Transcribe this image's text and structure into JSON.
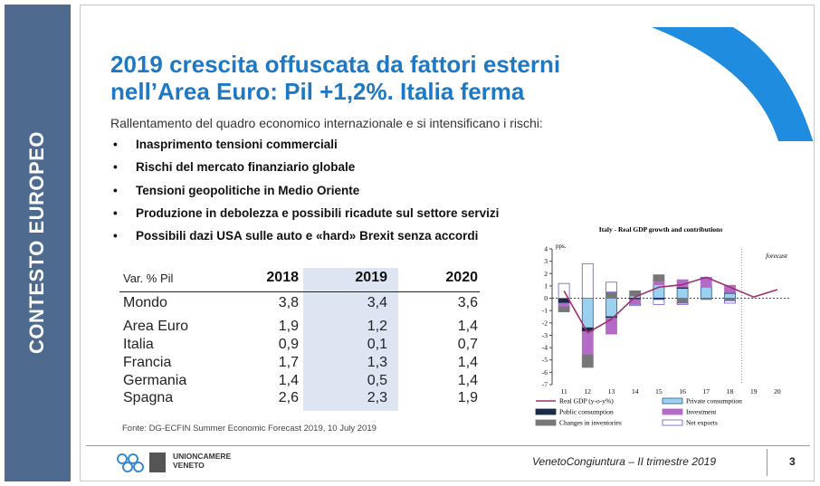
{
  "sidebar": {
    "label": "CONTESTO EUROPEO"
  },
  "header": {
    "title_line1": "2019 crescita offuscata da fattori esterni",
    "title_line2": "nell’Area Euro: Pil +1,2%. Italia ferma"
  },
  "intro": "Rallentamento del quadro economico internazionale e si intensificano i rischi:",
  "bullets": [
    "Inasprimento tensioni commerciali",
    "Rischi del mercato finanziario globale",
    "Tensioni geopolitiche in Medio Oriente",
    "Produzione in debolezza e possibili ricadute sul settore servizi",
    "Possibili dazi USA sulle auto e «hard» Brexit senza accordi"
  ],
  "table": {
    "header": [
      "Var. % Pil",
      "2018",
      "2019",
      "2020"
    ],
    "rows": [
      [
        "Mondo",
        "3,8",
        "3,4",
        "3,6"
      ],
      [
        "Area Euro",
        "1,9",
        "1,2",
        "1,4"
      ],
      [
        "Italia",
        "0,9",
        "0,1",
        "0,7"
      ],
      [
        "Francia",
        "1,7",
        "1,3",
        "1,4"
      ],
      [
        "Germania",
        "1,4",
        "0,5",
        "1,4"
      ],
      [
        "Spagna",
        "2,6",
        "2,3",
        "1,9"
      ]
    ]
  },
  "source": "Fonte: DG-ECFIN Summer Economic Forecast 2019, 10 July 2019",
  "footer": {
    "logo_text_1": "UNIONCAMERE",
    "logo_text_2": "VENETO",
    "caption": "VenetoCongiuntura – II trimestre 2019",
    "page": "3"
  },
  "chart_data": {
    "type": "bar-line",
    "title": "Italy - Real GDP growth and contributions",
    "y_label": "pps.",
    "annotation": "forecast",
    "categories": [
      "11",
      "12",
      "13",
      "14",
      "15",
      "16",
      "17",
      "18",
      "19",
      "20"
    ],
    "ylim": [
      -7,
      4
    ],
    "yticks": [
      4,
      3,
      2,
      1,
      0,
      -1,
      -2,
      -3,
      -4,
      -5,
      -6,
      -7
    ],
    "series": [
      {
        "name": "Private consumption",
        "kind": "bar",
        "color": "#9dd0ee",
        "values": [
          0.0,
          -2.4,
          -1.5,
          0.2,
          1.1,
          0.8,
          0.9,
          0.4,
          null,
          null
        ]
      },
      {
        "name": "Public consumption",
        "kind": "bar",
        "color": "#1a2a48",
        "values": [
          -0.4,
          -0.3,
          -0.1,
          -0.1,
          -0.1,
          0.1,
          0.0,
          0.05,
          null,
          null
        ]
      },
      {
        "name": "Investment",
        "kind": "bar",
        "color": "#b36bc7",
        "values": [
          -0.3,
          -1.9,
          -1.3,
          -0.4,
          0.3,
          0.6,
          0.7,
          0.6,
          null,
          null
        ]
      },
      {
        "name": "Changes in inventories",
        "kind": "bar",
        "color": "#777777",
        "values": [
          -0.4,
          -1.0,
          0.5,
          0.4,
          0.5,
          -0.4,
          -0.1,
          -0.2,
          null,
          null
        ]
      },
      {
        "name": "Net exports",
        "kind": "bar",
        "color": "#ffffff",
        "values": [
          1.2,
          2.8,
          0.8,
          -0.1,
          -0.4,
          -0.1,
          0.1,
          -0.2,
          null,
          null
        ]
      },
      {
        "name": "Real GDP (y-o-y%)",
        "kind": "line",
        "color": "#a0306e",
        "values": [
          0.6,
          -2.8,
          -1.7,
          0.1,
          0.9,
          1.1,
          1.7,
          0.9,
          0.1,
          0.7
        ]
      }
    ]
  }
}
